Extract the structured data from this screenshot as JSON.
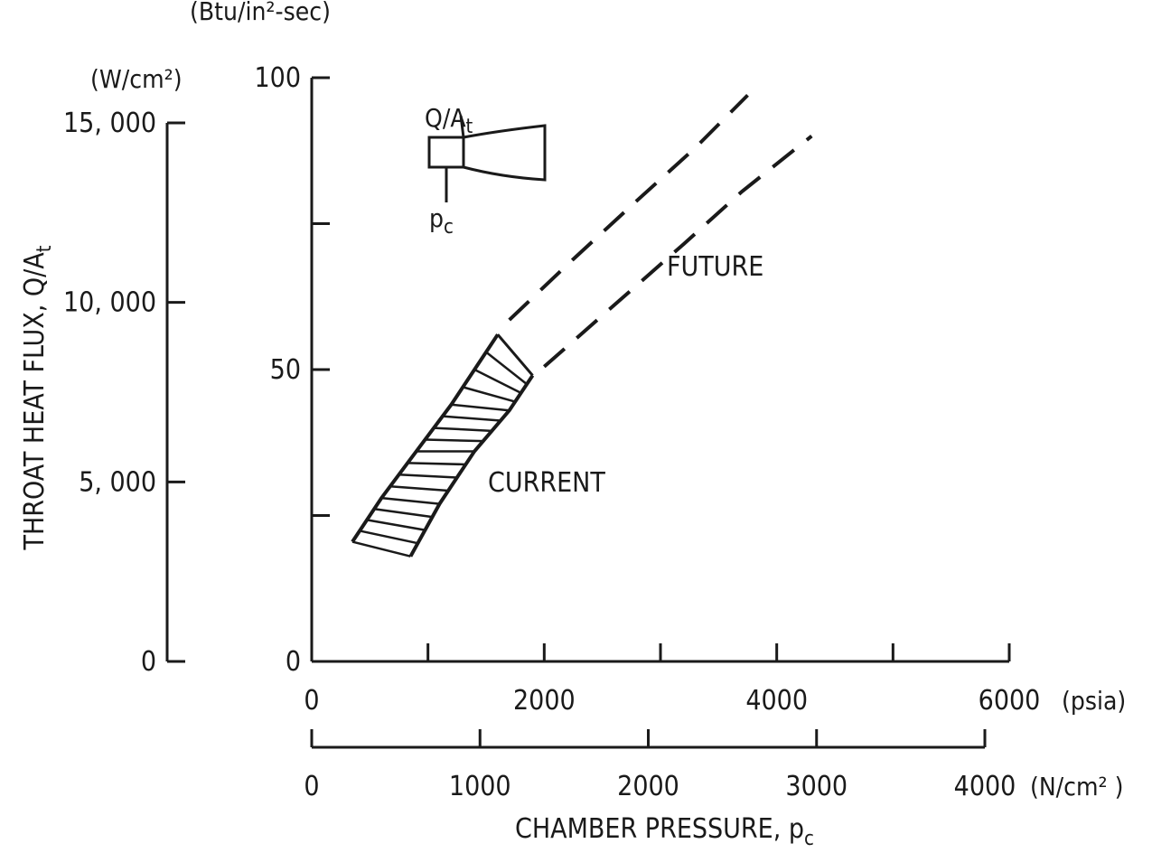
{
  "chart_data": {
    "type": "line",
    "x_primary": {
      "unit": "(psia)",
      "ticks": [
        0,
        2000,
        4000,
        6000
      ],
      "minor_ticks": [
        1000,
        3000,
        5000
      ],
      "range": [
        0,
        6000
      ]
    },
    "x_secondary": {
      "unit": "(N/cm² )",
      "ticks": [
        0,
        1000,
        2000,
        3000,
        4000
      ],
      "range": [
        0,
        4000
      ]
    },
    "xlabel": "CHAMBER PRESSURE, pc",
    "y_primary": {
      "unit": "(Btu/in²-sec)",
      "ticks": [
        0,
        50,
        100
      ],
      "minor_ticks": [
        25,
        75
      ],
      "range": [
        0,
        100
      ]
    },
    "y_secondary": {
      "unit": "(W/cm²)",
      "ticks": [
        0,
        5000,
        10000,
        15000
      ],
      "tick_labels": [
        "0",
        "5, 000",
        "10, 000",
        "15, 000"
      ],
      "range": [
        0,
        15000
      ]
    },
    "ylabel": "THROAT HEAT FLUX, Q/At",
    "series": [
      {
        "style": "upper",
        "solid_x": [
          350,
          600,
          900,
          1200,
          1600
        ],
        "solid_y": [
          20.5,
          28,
          36,
          44,
          56
        ],
        "dashed_x": [
          1700,
          2200,
          2800,
          3300,
          3750
        ],
        "dashed_y": [
          58.5,
          68,
          79,
          88,
          97
        ]
      },
      {
        "style": "lower",
        "solid_x": [
          850,
          1100,
          1400,
          1700,
          1900
        ],
        "solid_y": [
          18,
          27,
          36,
          43,
          49
        ],
        "dashed_x": [
          2000,
          2600,
          3200,
          3700,
          4300
        ],
        "dashed_y": [
          50.5,
          61,
          71.5,
          80.5,
          90
        ]
      }
    ],
    "regions": {
      "current": "CURRENT",
      "future": "FUTURE"
    },
    "inset": {
      "flux_label": "Q/At",
      "pressure_label": "pc"
    },
    "grid": false
  }
}
